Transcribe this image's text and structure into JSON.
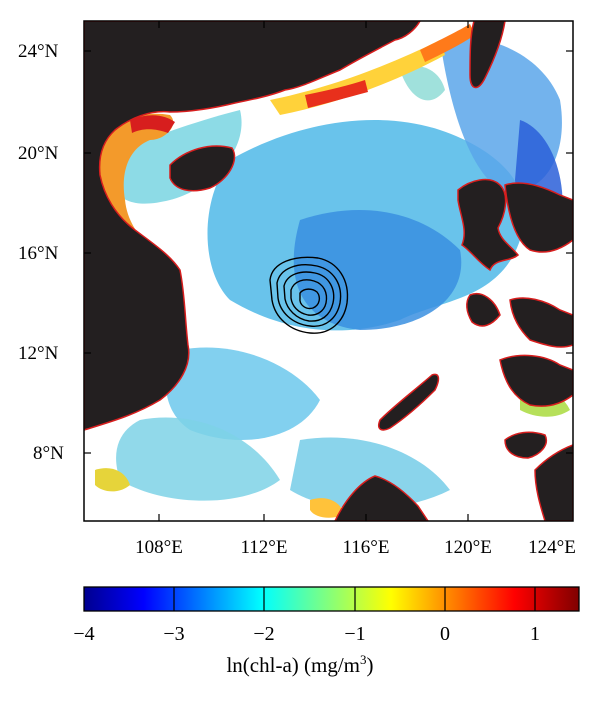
{
  "map": {
    "lat_ticks": [
      "24°N",
      "20°N",
      "16°N",
      "12°N",
      "8°N"
    ],
    "lon_ticks": [
      "108°E",
      "112°E",
      "116°E",
      "120°E",
      "124°E"
    ],
    "extent": {
      "lon_min": 105,
      "lon_max": 125,
      "lat_min": 7,
      "lat_max": 25
    },
    "colors": {
      "land": "#231f20",
      "coast": "#d71e1e",
      "no_data": "#ffffff"
    },
    "variable": "ln(chl-a)"
  },
  "colorbar": {
    "ticks": [
      "−4",
      "−3",
      "−2",
      "−1",
      "0",
      "1"
    ],
    "range": [
      -4,
      1.5
    ],
    "colormap": "jet",
    "title_main": "ln(chl-a) (mg/m",
    "title_sup": "3",
    "title_end": ")"
  }
}
